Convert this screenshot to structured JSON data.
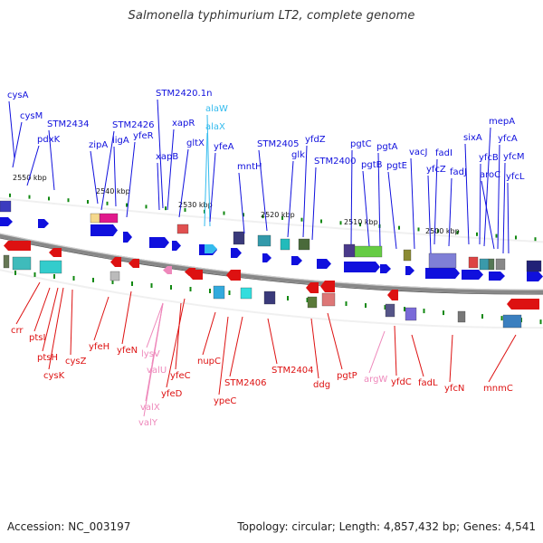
{
  "title": "Salmonella typhimurium LT2, complete genome",
  "footer": {
    "accession": "Accession: NC_003197",
    "summary": "Topology: circular; Length: 4,857,432 bp; Genes: 4,541"
  },
  "colors": {
    "forward_gene": "#1010dd",
    "reverse_gene": "#dd1111",
    "rna_forward": "#33bbee",
    "rna_reverse": "#ee88bb",
    "backbone": "#888888"
  },
  "kbp_labels": [
    "2550 kbp",
    "2540 kbp",
    "2530 kbp",
    "2520 kbp",
    "2510 kbp",
    "2500 kbp"
  ],
  "forward_labels": [
    {
      "text": "cysA",
      "kind": "gene"
    },
    {
      "text": "cysM",
      "kind": "gene"
    },
    {
      "text": "pdxK",
      "kind": "gene"
    },
    {
      "text": "STM2434",
      "kind": "gene"
    },
    {
      "text": "zipA",
      "kind": "gene"
    },
    {
      "text": "ligA",
      "kind": "gene"
    },
    {
      "text": "STM2426",
      "kind": "gene"
    },
    {
      "text": "yfeR",
      "kind": "gene"
    },
    {
      "text": "STM2420.1n",
      "kind": "gene"
    },
    {
      "text": "xapR",
      "kind": "gene"
    },
    {
      "text": "xapB",
      "kind": "gene"
    },
    {
      "text": "gltX",
      "kind": "gene"
    },
    {
      "text": "alaW",
      "kind": "rna"
    },
    {
      "text": "alaX",
      "kind": "rna"
    },
    {
      "text": "yfeA",
      "kind": "gene"
    },
    {
      "text": "mntH",
      "kind": "gene"
    },
    {
      "text": "STM2405",
      "kind": "gene"
    },
    {
      "text": "glk",
      "kind": "gene"
    },
    {
      "text": "yfdZ",
      "kind": "gene"
    },
    {
      "text": "STM2400",
      "kind": "gene"
    },
    {
      "text": "pgtC",
      "kind": "gene"
    },
    {
      "text": "pgtB",
      "kind": "gene"
    },
    {
      "text": "pgtA",
      "kind": "gene"
    },
    {
      "text": "pgtE",
      "kind": "gene"
    },
    {
      "text": "vacJ",
      "kind": "gene"
    },
    {
      "text": "yfcZ",
      "kind": "gene"
    },
    {
      "text": "fadI",
      "kind": "gene"
    },
    {
      "text": "fadJ",
      "kind": "gene"
    },
    {
      "text": "sixA",
      "kind": "gene"
    },
    {
      "text": "yfcB",
      "kind": "gene"
    },
    {
      "text": "mepA",
      "kind": "gene"
    },
    {
      "text": "aroC",
      "kind": "gene"
    },
    {
      "text": "yfcA",
      "kind": "gene"
    },
    {
      "text": "yfcM",
      "kind": "gene"
    },
    {
      "text": "yfcL",
      "kind": "gene"
    }
  ],
  "reverse_labels": [
    {
      "text": "crr",
      "kind": "gene"
    },
    {
      "text": "ptsI",
      "kind": "gene"
    },
    {
      "text": "ptsH",
      "kind": "gene"
    },
    {
      "text": "cysK",
      "kind": "gene"
    },
    {
      "text": "cysZ",
      "kind": "gene"
    },
    {
      "text": "yfeH",
      "kind": "gene"
    },
    {
      "text": "yfeN",
      "kind": "gene"
    },
    {
      "text": "lysV",
      "kind": "rna"
    },
    {
      "text": "valU",
      "kind": "rna"
    },
    {
      "text": "valX",
      "kind": "rna"
    },
    {
      "text": "valY",
      "kind": "rna"
    },
    {
      "text": "yfeC",
      "kind": "gene"
    },
    {
      "text": "yfeD",
      "kind": "gene"
    },
    {
      "text": "nupC",
      "kind": "gene"
    },
    {
      "text": "ypeC",
      "kind": "gene"
    },
    {
      "text": "STM2406",
      "kind": "gene"
    },
    {
      "text": "STM2404",
      "kind": "gene"
    },
    {
      "text": "ddg",
      "kind": "gene"
    },
    {
      "text": "pgtP",
      "kind": "gene"
    },
    {
      "text": "argW",
      "kind": "rna"
    },
    {
      "text": "yfdC",
      "kind": "gene"
    },
    {
      "text": "fadL",
      "kind": "gene"
    },
    {
      "text": "yfcN",
      "kind": "gene"
    },
    {
      "text": "mnmC",
      "kind": "gene"
    }
  ]
}
